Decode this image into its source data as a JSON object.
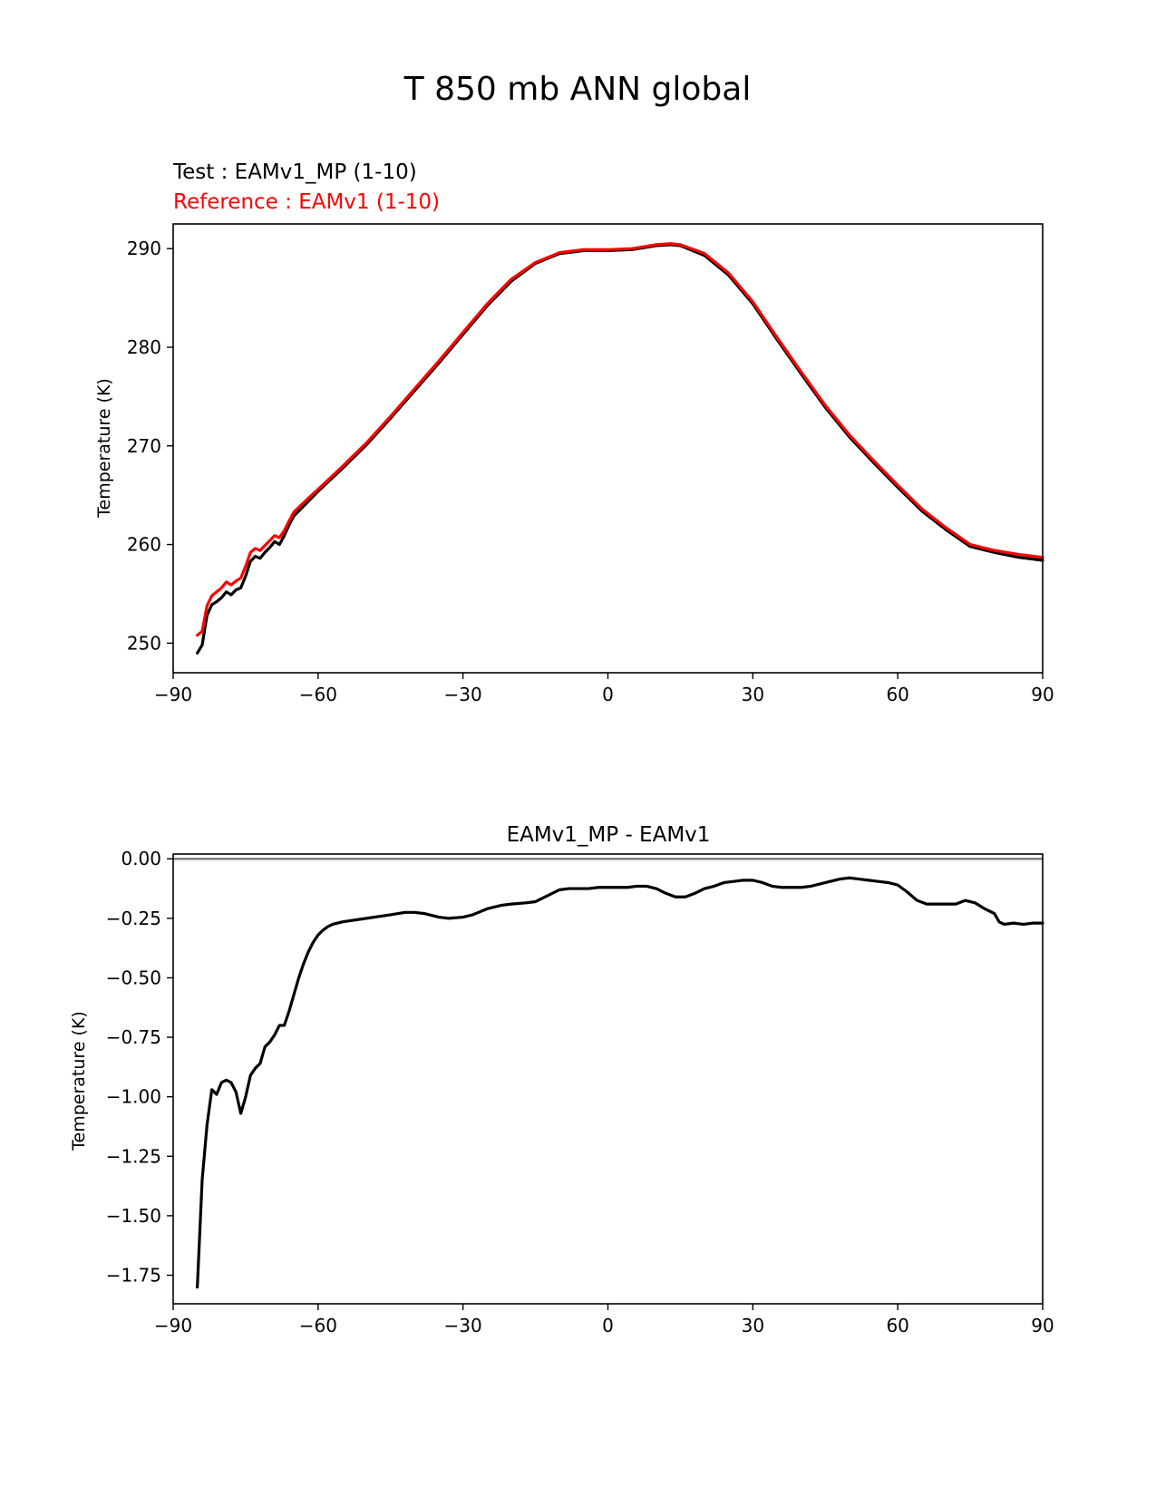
{
  "figure_title": "T 850 mb ANN global",
  "colors": {
    "test": "#000000",
    "reference": "#ff0000",
    "zero_line": "#808080"
  },
  "chart_data": [
    {
      "type": "line",
      "title": "",
      "subtitle_test": "Test : EAMv1_MP (1-10)",
      "subtitle_reference": "Reference : EAMv1 (1-10)",
      "xlabel": "",
      "ylabel": "Temperature (K)",
      "xlim": [
        -90,
        90
      ],
      "ylim": [
        247,
        292.5
      ],
      "xticks": [
        -90,
        -60,
        -30,
        0,
        30,
        60,
        90
      ],
      "xtick_labels": [
        "−90",
        "−60",
        "−30",
        "0",
        "30",
        "60",
        "90"
      ],
      "yticks": [
        250,
        260,
        270,
        280,
        290
      ],
      "ytick_labels": [
        "250",
        "260",
        "270",
        "280",
        "290"
      ],
      "grid": false,
      "series": [
        {
          "role": "test",
          "x": [
            -85,
            -84,
            -83,
            -82,
            -81,
            -80,
            -79,
            -78,
            -77,
            -76,
            -75,
            -74,
            -73,
            -72,
            -71,
            -70,
            -69,
            -68,
            -67,
            -66,
            -65,
            -62,
            -60,
            -55,
            -50,
            -45,
            -40,
            -35,
            -30,
            -25,
            -20,
            -15,
            -10,
            -5,
            0,
            5,
            10,
            13,
            15,
            20,
            25,
            30,
            35,
            40,
            45,
            50,
            55,
            60,
            65,
            70,
            75,
            80,
            85,
            90
          ],
          "y": [
            249.0,
            249.8,
            252.8,
            253.9,
            254.2,
            254.6,
            255.2,
            254.9,
            255.4,
            255.6,
            256.8,
            258.3,
            258.8,
            258.6,
            259.2,
            259.7,
            260.3,
            260.0,
            260.9,
            262.0,
            262.9,
            264.4,
            265.4,
            267.7,
            270.1,
            272.8,
            275.6,
            278.4,
            281.3,
            284.2,
            286.7,
            288.5,
            289.5,
            289.8,
            289.8,
            289.9,
            290.3,
            290.4,
            290.3,
            289.3,
            287.3,
            284.4,
            280.8,
            277.3,
            273.9,
            270.9,
            268.3,
            265.8,
            263.4,
            261.5,
            259.8,
            259.2,
            258.7,
            258.4
          ]
        },
        {
          "role": "reference",
          "x": [
            -85,
            -84,
            -83,
            -82,
            -81,
            -80,
            -79,
            -78,
            -77,
            -76,
            -75,
            -74,
            -73,
            -72,
            -71,
            -70,
            -69,
            -68,
            -67,
            -66,
            -65,
            -62,
            -60,
            -55,
            -50,
            -45,
            -40,
            -35,
            -30,
            -25,
            -20,
            -15,
            -10,
            -5,
            0,
            5,
            10,
            13,
            15,
            20,
            25,
            30,
            35,
            40,
            45,
            50,
            55,
            60,
            65,
            70,
            75,
            80,
            85,
            90
          ],
          "y": [
            250.8,
            251.2,
            253.8,
            254.8,
            255.2,
            255.6,
            256.2,
            255.9,
            256.3,
            256.6,
            257.8,
            259.2,
            259.6,
            259.4,
            259.9,
            260.4,
            260.9,
            260.7,
            261.4,
            262.4,
            263.3,
            264.7,
            265.6,
            267.9,
            270.3,
            273.0,
            275.8,
            278.6,
            281.5,
            284.4,
            286.9,
            288.6,
            289.6,
            289.9,
            289.9,
            290.0,
            290.4,
            290.5,
            290.4,
            289.5,
            287.5,
            284.6,
            281.0,
            277.5,
            274.1,
            271.1,
            268.5,
            266.0,
            263.6,
            261.7,
            260.0,
            259.4,
            259.0,
            258.7
          ]
        }
      ]
    },
    {
      "type": "line",
      "title": "EAMv1_MP - EAMv1",
      "xlabel": "",
      "ylabel": "Temperature (K)",
      "xlim": [
        -90,
        90
      ],
      "ylim": [
        -1.87,
        0.02
      ],
      "xticks": [
        -90,
        -60,
        -30,
        0,
        30,
        60,
        90
      ],
      "xtick_labels": [
        "−90",
        "−60",
        "−30",
        "0",
        "30",
        "60",
        "90"
      ],
      "yticks": [
        0,
        -0.25,
        -0.5,
        -0.75,
        -1.0,
        -1.25,
        -1.5,
        -1.75
      ],
      "ytick_labels": [
        "0.00",
        "−0.25",
        "−0.50",
        "−0.75",
        "−1.00",
        "−1.25",
        "−1.50",
        "−1.75"
      ],
      "grid": false,
      "zero_line": 0,
      "series": [
        {
          "role": "test",
          "x": [
            -85,
            -84,
            -83,
            -82,
            -81,
            -80,
            -79,
            -78,
            -77,
            -76,
            -75,
            -74,
            -73,
            -72,
            -71,
            -70,
            -69,
            -68,
            -67,
            -66,
            -65,
            -64,
            -63,
            -62,
            -61,
            -60,
            -59,
            -58,
            -57,
            -55,
            -50,
            -45,
            -42,
            -40,
            -38,
            -35,
            -33,
            -30,
            -28,
            -25,
            -22,
            -20,
            -17,
            -15,
            -13,
            -11,
            -10,
            -8,
            -6,
            -4,
            -2,
            0,
            2,
            4,
            6,
            8,
            10,
            12,
            14,
            16,
            18,
            20,
            22,
            24,
            26,
            28,
            30,
            32,
            34,
            36,
            38,
            40,
            42,
            44,
            46,
            48,
            50,
            52,
            54,
            56,
            58,
            60,
            62,
            64,
            66,
            68,
            70,
            72,
            74,
            76,
            78,
            80,
            81,
            82,
            84,
            86,
            88,
            90
          ],
          "y": [
            -1.8,
            -1.35,
            -1.12,
            -0.97,
            -0.99,
            -0.94,
            -0.93,
            -0.94,
            -0.98,
            -1.07,
            -1.0,
            -0.91,
            -0.88,
            -0.86,
            -0.79,
            -0.77,
            -0.74,
            -0.7,
            -0.7,
            -0.64,
            -0.57,
            -0.5,
            -0.44,
            -0.39,
            -0.35,
            -0.32,
            -0.3,
            -0.285,
            -0.275,
            -0.265,
            -0.25,
            -0.235,
            -0.225,
            -0.225,
            -0.23,
            -0.245,
            -0.25,
            -0.245,
            -0.235,
            -0.21,
            -0.195,
            -0.19,
            -0.185,
            -0.18,
            -0.16,
            -0.14,
            -0.13,
            -0.125,
            -0.125,
            -0.125,
            -0.12,
            -0.12,
            -0.12,
            -0.12,
            -0.115,
            -0.115,
            -0.125,
            -0.145,
            -0.16,
            -0.16,
            -0.145,
            -0.125,
            -0.115,
            -0.1,
            -0.095,
            -0.09,
            -0.09,
            -0.1,
            -0.115,
            -0.12,
            -0.12,
            -0.12,
            -0.115,
            -0.105,
            -0.095,
            -0.085,
            -0.08,
            -0.085,
            -0.09,
            -0.095,
            -0.1,
            -0.11,
            -0.14,
            -0.175,
            -0.19,
            -0.19,
            -0.19,
            -0.19,
            -0.175,
            -0.185,
            -0.21,
            -0.23,
            -0.265,
            -0.275,
            -0.27,
            -0.275,
            -0.27,
            -0.27
          ]
        }
      ]
    }
  ]
}
